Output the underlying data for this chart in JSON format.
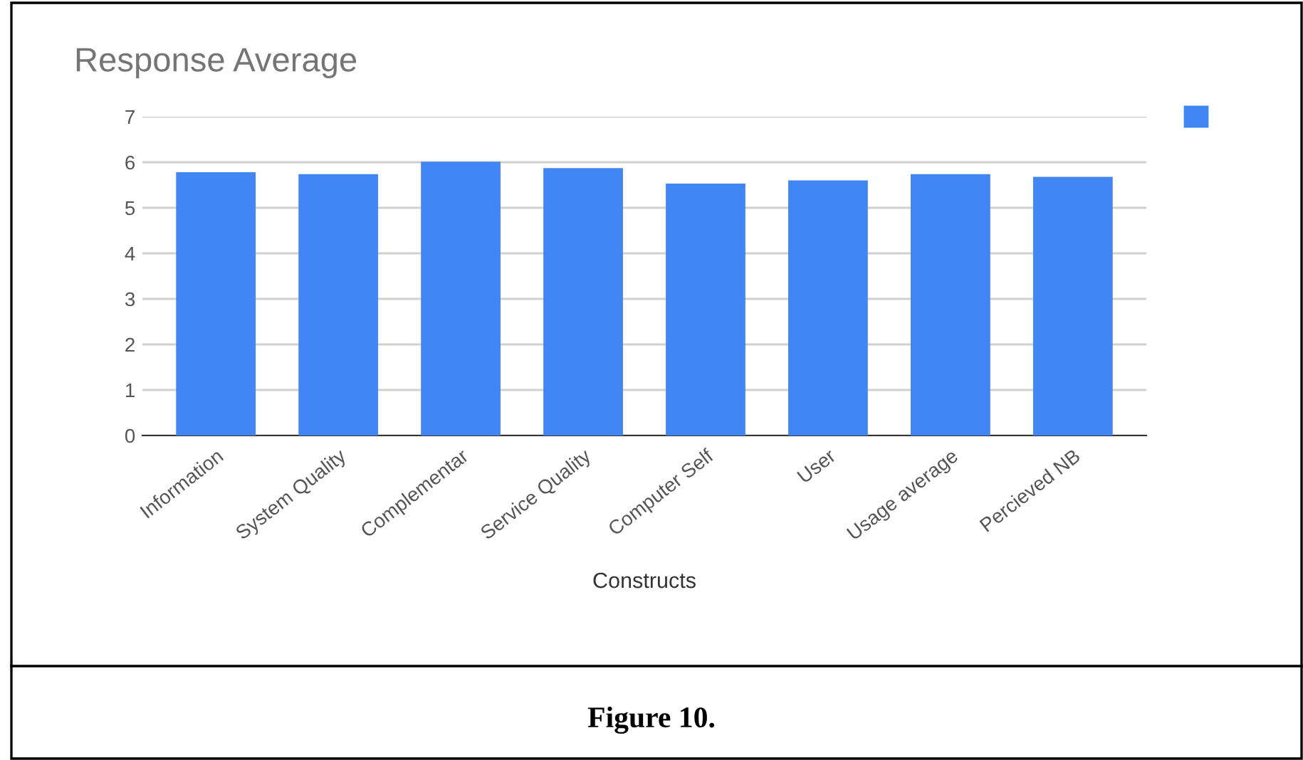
{
  "chart_data": {
    "type": "bar",
    "title": "Response Average",
    "xlabel": "Constructs",
    "categories": [
      "Information",
      "System Quality",
      "Complementar",
      "Service Quality",
      "Computer Self",
      "User",
      "Usage average",
      "Percieved NB"
    ],
    "series": [
      {
        "color": "#4285f4",
        "values": [
          5.78,
          5.74,
          6.01,
          5.87,
          5.53,
          5.6,
          5.74,
          5.68
        ]
      }
    ],
    "ylim": [
      0,
      7
    ],
    "yticks": [
      0,
      1,
      2,
      3,
      4,
      5,
      6,
      7
    ],
    "grid": "y",
    "annotations": [
      "Figure 10."
    ]
  }
}
